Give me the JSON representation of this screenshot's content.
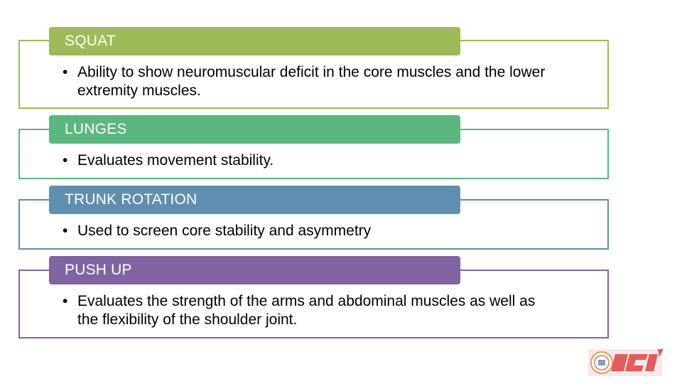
{
  "sections": [
    {
      "title": "SQUAT",
      "color": "#9dbb57",
      "bullets": [
        "Ability to show neuromuscular deficit in the core muscles and the lower extremity muscles."
      ]
    },
    {
      "title": "LUNGES",
      "color": "#5bb77f",
      "bullets": [
        "Evaluates movement stability."
      ]
    },
    {
      "title": "TRUNK ROTATION",
      "color": "#5f8fb0",
      "bullets": [
        "Used to screen core stability and asymmetry"
      ]
    },
    {
      "title": "PUSH UP",
      "color": "#8064a2",
      "bullets": [
        "Evaluates the strength of the arms and abdominal muscles as well as the flexibility of the shoulder joint."
      ]
    }
  ],
  "logo": {
    "text": "ICI",
    "icon": "institution-seal-icon",
    "color": "#e35b5b"
  }
}
